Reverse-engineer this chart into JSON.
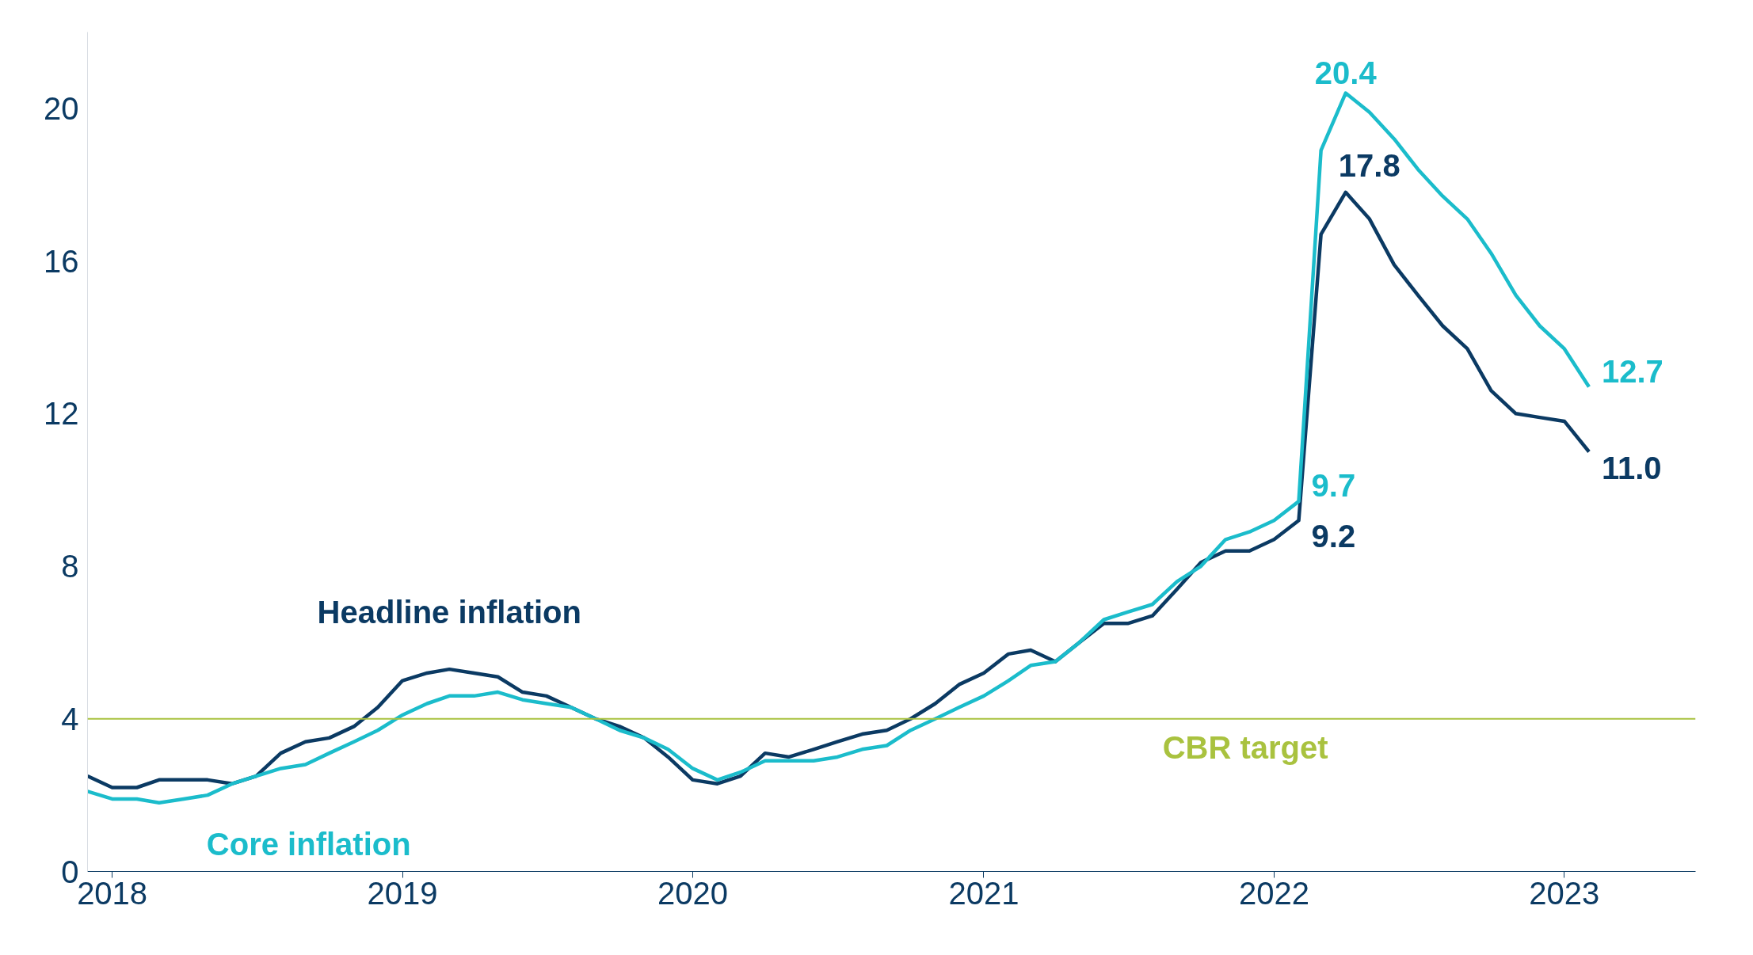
{
  "chart_data": {
    "type": "line",
    "x": [
      "2017-12",
      "2018-01",
      "2018-02",
      "2018-03",
      "2018-04",
      "2018-05",
      "2018-06",
      "2018-07",
      "2018-08",
      "2018-09",
      "2018-10",
      "2018-11",
      "2018-12",
      "2019-01",
      "2019-02",
      "2019-03",
      "2019-04",
      "2019-05",
      "2019-06",
      "2019-07",
      "2019-08",
      "2019-09",
      "2019-10",
      "2019-11",
      "2019-12",
      "2020-01",
      "2020-02",
      "2020-03",
      "2020-04",
      "2020-05",
      "2020-06",
      "2020-07",
      "2020-08",
      "2020-09",
      "2020-10",
      "2020-11",
      "2020-12",
      "2021-01",
      "2021-02",
      "2021-03",
      "2021-04",
      "2021-05",
      "2021-06",
      "2021-07",
      "2021-08",
      "2021-09",
      "2021-10",
      "2021-11",
      "2021-12",
      "2022-01",
      "2022-02",
      "2022-03",
      "2022-04",
      "2022-05",
      "2022-06",
      "2022-07",
      "2022-08",
      "2022-09",
      "2022-10",
      "2022-11",
      "2022-12",
      "2023-01",
      "2023-02"
    ],
    "series": [
      {
        "name": "Headline inflation",
        "color": "#0b3a63",
        "values": [
          2.5,
          2.2,
          2.2,
          2.4,
          2.4,
          2.4,
          2.3,
          2.5,
          3.1,
          3.4,
          3.5,
          3.8,
          4.3,
          5.0,
          5.2,
          5.3,
          5.2,
          5.1,
          4.7,
          4.6,
          4.3,
          4.0,
          3.8,
          3.5,
          3.0,
          2.4,
          2.3,
          2.5,
          3.1,
          3.0,
          3.2,
          3.4,
          3.6,
          3.7,
          4.0,
          4.4,
          4.9,
          5.2,
          5.7,
          5.8,
          5.5,
          6.0,
          6.5,
          6.5,
          6.7,
          7.4,
          8.1,
          8.4,
          8.4,
          8.7,
          9.2,
          16.7,
          17.8,
          17.1,
          15.9,
          15.1,
          14.3,
          13.7,
          12.6,
          12.0,
          11.9,
          11.8,
          11.0
        ]
      },
      {
        "name": "Core inflation",
        "color": "#1bbccb",
        "values": [
          2.1,
          1.9,
          1.9,
          1.8,
          1.9,
          2.0,
          2.3,
          2.5,
          2.7,
          2.8,
          3.1,
          3.4,
          3.7,
          4.1,
          4.4,
          4.6,
          4.6,
          4.7,
          4.5,
          4.4,
          4.3,
          4.0,
          3.7,
          3.5,
          3.2,
          2.7,
          2.4,
          2.6,
          2.9,
          2.9,
          2.9,
          3.0,
          3.2,
          3.3,
          3.7,
          4.0,
          4.3,
          4.6,
          5.0,
          5.4,
          5.5,
          6.0,
          6.6,
          6.8,
          7.0,
          7.6,
          8.0,
          8.7,
          8.9,
          9.2,
          9.7,
          18.9,
          20.4,
          19.9,
          19.2,
          18.4,
          17.7,
          17.1,
          16.2,
          15.1,
          14.3,
          13.7,
          12.7
        ]
      }
    ],
    "xlim": [
      "2017-12",
      "2023-06-15"
    ],
    "xticks": [
      "2018",
      "2019",
      "2020",
      "2021",
      "2022",
      "2023"
    ],
    "ylim": [
      0,
      22
    ],
    "yticks": [
      0,
      4,
      8,
      12,
      16,
      20
    ],
    "grid": false,
    "legend": false,
    "ref_lines": [
      {
        "axis": "y",
        "value": 4,
        "label": "CBR target",
        "color": "#a9c23f"
      }
    ],
    "annotations": [
      {
        "text": "20.4",
        "x": "2022-04",
        "y": 20.4
      },
      {
        "text": "17.8",
        "x": "2022-04",
        "y": 17.8
      },
      {
        "text": "9.7",
        "x": "2022-02",
        "y": 9.7
      },
      {
        "text": "9.2",
        "x": "2022-02",
        "y": 9.2
      },
      {
        "text": "12.7",
        "x": "2023-02",
        "y": 12.7
      },
      {
        "text": "11.0",
        "x": "2023-02",
        "y": 11.0
      }
    ]
  }
}
